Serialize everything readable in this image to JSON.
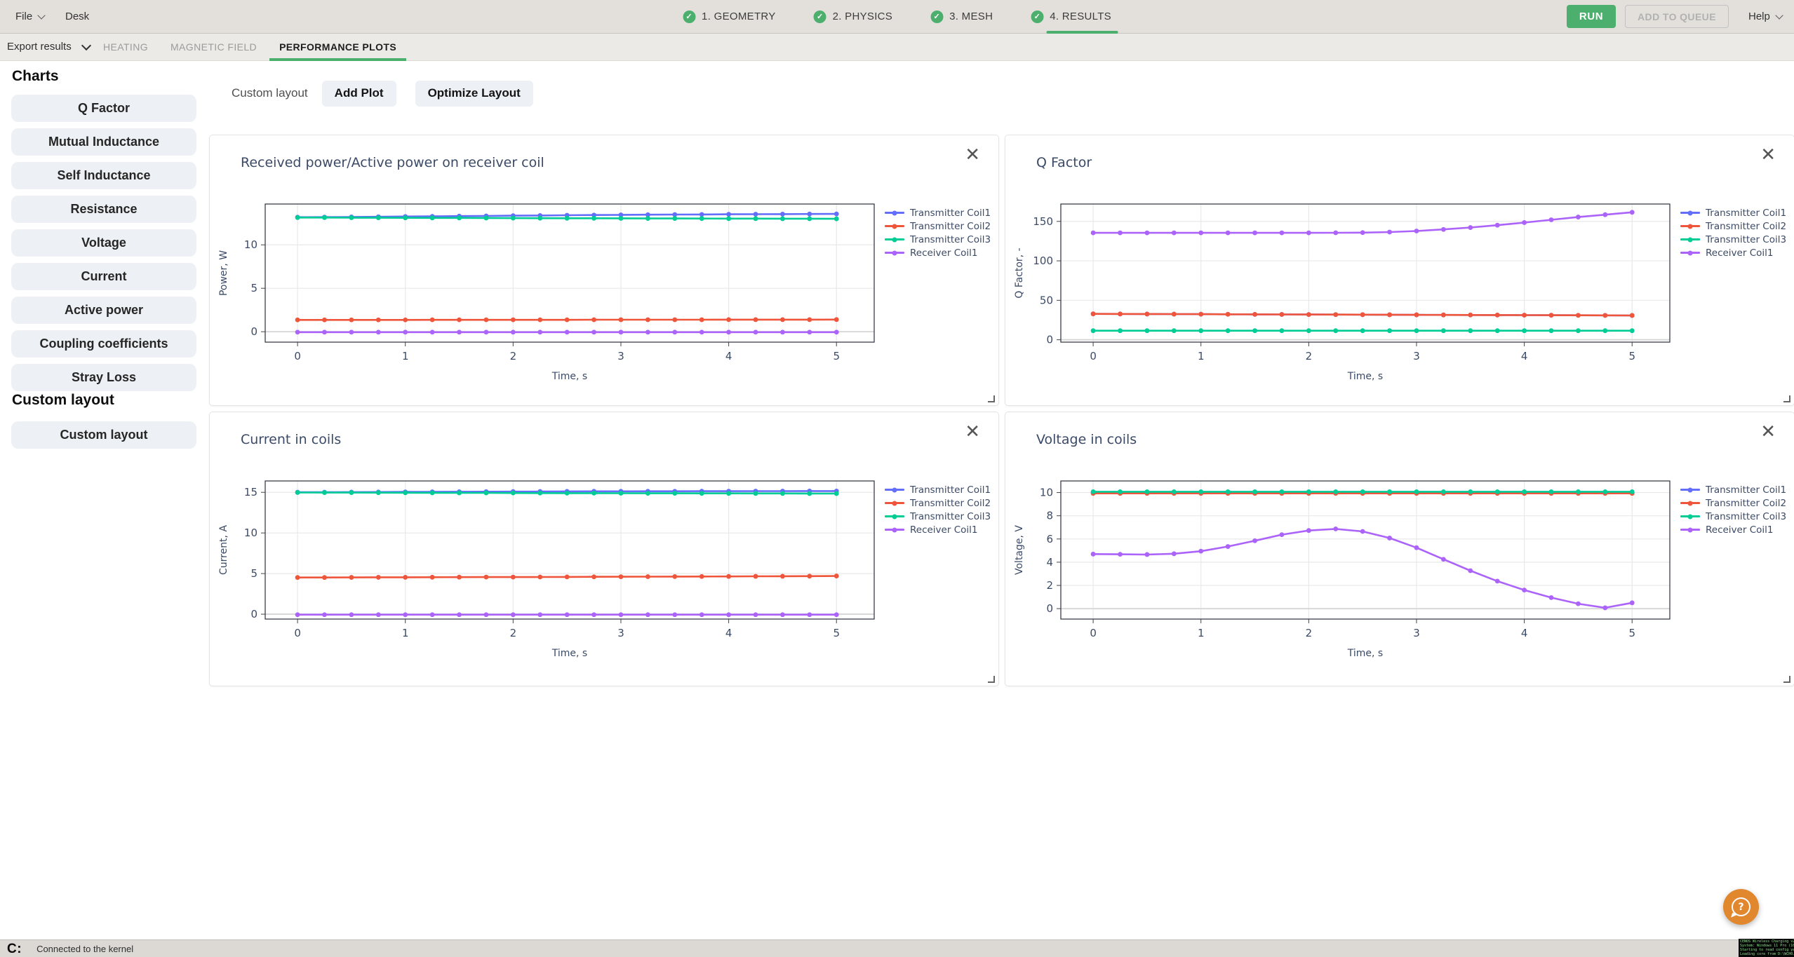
{
  "icons": {
    "check": "✓",
    "close": "✕",
    "help": "?"
  },
  "topbar": {
    "file_label": "File",
    "desk_label": "Desk",
    "steps": [
      {
        "label": "1. GEOMETRY",
        "done": true,
        "active": false
      },
      {
        "label": "2. PHYSICS",
        "done": true,
        "active": false
      },
      {
        "label": "3. MESH",
        "done": true,
        "active": false
      },
      {
        "label": "4. RESULTS",
        "done": true,
        "active": true
      }
    ],
    "run_label": "RUN",
    "add_to_queue_label": "ADD TO QUEUE",
    "help_label": "Help",
    "accent_green": "#4caf6e"
  },
  "tabbar": {
    "export_label": "Export results",
    "tabs": [
      {
        "label": "HEATING",
        "active": false
      },
      {
        "label": "MAGNETIC FIELD",
        "active": false
      },
      {
        "label": "PERFORMANCE PLOTS",
        "active": true
      }
    ]
  },
  "sidebar": {
    "charts_heading": "Charts",
    "chart_buttons": [
      "Q Factor",
      "Mutual Inductance",
      "Self Inductance",
      "Resistance",
      "Voltage",
      "Current",
      "Active power",
      "Coupling coefficients",
      "Stray Loss"
    ],
    "custom_heading": "Custom layout",
    "custom_buttons": [
      "Custom layout"
    ]
  },
  "toolbar": {
    "layout_label": "Custom layout",
    "add_plot_label": "Add Plot",
    "optimize_label": "Optimize Layout"
  },
  "statusbar": {
    "logo": "C:",
    "status": "Connected to the kernel"
  },
  "console_overlay": {
    "lines": [
      "CENOS Wireless Charging v2.6.",
      "System: Windows 11 Pro (10.0.",
      "Starting to read config yaml",
      "Loading core from D:\\WCH0.d"
    ]
  },
  "chart_data": [
    {
      "type": "line",
      "title": "Received power/Active power on receiver coil",
      "xlabel": "Time, s",
      "ylabel": "Power, W",
      "xlim": [
        -0.3,
        5.35
      ],
      "ylim": [
        -1.2,
        14.7
      ],
      "xticks": [
        0,
        1,
        2,
        3,
        4,
        5
      ],
      "yticks": [
        0,
        5,
        10
      ],
      "x": [
        0,
        0.25,
        0.5,
        0.75,
        1,
        1.25,
        1.5,
        1.75,
        2,
        2.25,
        2.5,
        2.75,
        3,
        3.25,
        3.5,
        3.75,
        4,
        4.25,
        4.5,
        4.75,
        5
      ],
      "series": [
        {
          "name": "Transmitter Coil1",
          "color": "#636efa",
          "values": [
            13.18,
            13.19,
            13.21,
            13.23,
            13.26,
            13.28,
            13.31,
            13.33,
            13.36,
            13.38,
            13.41,
            13.43,
            13.45,
            13.47,
            13.49,
            13.5,
            13.52,
            13.53,
            13.54,
            13.55,
            13.56
          ]
        },
        {
          "name": "Transmitter Coil2",
          "color": "#ef553b",
          "values": [
            1.36,
            1.36,
            1.36,
            1.36,
            1.36,
            1.37,
            1.37,
            1.37,
            1.37,
            1.37,
            1.37,
            1.38,
            1.38,
            1.38,
            1.38,
            1.38,
            1.39,
            1.39,
            1.39,
            1.39,
            1.4
          ]
        },
        {
          "name": "Transmitter Coil3",
          "color": "#00cc96",
          "values": [
            13.14,
            13.14,
            13.13,
            13.12,
            13.11,
            13.1,
            13.1,
            13.09,
            13.08,
            13.07,
            13.06,
            13.06,
            13.05,
            13.04,
            13.04,
            13.03,
            13.02,
            13.02,
            13.01,
            13.01,
            13.0
          ]
        },
        {
          "name": "Receiver Coil1",
          "color": "#ab63fa",
          "values": [
            -0.05,
            -0.05,
            -0.05,
            -0.05,
            -0.05,
            -0.05,
            -0.05,
            -0.05,
            -0.05,
            -0.05,
            -0.05,
            -0.05,
            -0.05,
            -0.05,
            -0.05,
            -0.05,
            -0.05,
            -0.05,
            -0.05,
            -0.05,
            -0.05
          ]
        }
      ]
    },
    {
      "type": "line",
      "title": "Q Factor",
      "xlabel": "Time, s",
      "ylabel": "Q Factor, -",
      "xlim": [
        -0.3,
        5.35
      ],
      "ylim": [
        -3,
        172
      ],
      "xticks": [
        0,
        1,
        2,
        3,
        4,
        5
      ],
      "yticks": [
        0,
        50,
        100,
        150
      ],
      "x": [
        0,
        0.25,
        0.5,
        0.75,
        1,
        1.25,
        1.5,
        1.75,
        2,
        2.25,
        2.5,
        2.75,
        3,
        3.25,
        3.5,
        3.75,
        4,
        4.25,
        4.5,
        4.75,
        5
      ],
      "series": [
        {
          "name": "Transmitter Coil1",
          "color": "#636efa",
          "values": [
            32.8,
            32.7,
            32.6,
            32.5,
            32.4,
            32.3,
            32.2,
            32.1,
            32.0,
            31.9,
            31.8,
            31.7,
            31.6,
            31.5,
            31.4,
            31.3,
            31.2,
            31.1,
            31.0,
            30.9,
            30.8
          ]
        },
        {
          "name": "Transmitter Coil2",
          "color": "#ef553b",
          "values": [
            32.8,
            32.7,
            32.6,
            32.5,
            32.4,
            32.3,
            32.2,
            32.1,
            32.0,
            31.9,
            31.8,
            31.7,
            31.6,
            31.5,
            31.4,
            31.3,
            31.2,
            31.1,
            31.0,
            30.9,
            30.8
          ]
        },
        {
          "name": "Transmitter Coil3",
          "color": "#00cc96",
          "values": [
            11.5,
            11.5,
            11.5,
            11.5,
            11.5,
            11.5,
            11.5,
            11.5,
            11.5,
            11.5,
            11.5,
            11.5,
            11.5,
            11.5,
            11.5,
            11.5,
            11.5,
            11.5,
            11.5,
            11.5,
            11.5
          ]
        },
        {
          "name": "Receiver Coil1",
          "color": "#ab63fa",
          "values": [
            135.5,
            135.5,
            135.5,
            135.5,
            135.5,
            135.5,
            135.5,
            135.5,
            135.5,
            135.6,
            135.8,
            136.5,
            137.8,
            139.8,
            142.2,
            145.2,
            148.5,
            152,
            155.5,
            158.5,
            161.5
          ]
        }
      ]
    },
    {
      "type": "line",
      "title": "Current in coils",
      "xlabel": "Time, s",
      "ylabel": "Current, A",
      "xlim": [
        -0.3,
        5.35
      ],
      "ylim": [
        -0.6,
        16.4
      ],
      "xticks": [
        0,
        1,
        2,
        3,
        4,
        5
      ],
      "yticks": [
        0,
        5,
        10,
        15
      ],
      "x": [
        0,
        0.25,
        0.5,
        0.75,
        1,
        1.25,
        1.5,
        1.75,
        2,
        2.25,
        2.5,
        2.75,
        3,
        3.25,
        3.5,
        3.75,
        4,
        4.25,
        4.5,
        4.75,
        5
      ],
      "series": [
        {
          "name": "Transmitter Coil1",
          "color": "#636efa",
          "values": [
            15.02,
            15.02,
            15.03,
            15.04,
            15.05,
            15.06,
            15.07,
            15.08,
            15.09,
            15.1,
            15.11,
            15.12,
            15.12,
            15.13,
            15.13,
            15.14,
            15.14,
            15.15,
            15.15,
            15.16,
            15.16
          ]
        },
        {
          "name": "Transmitter Coil2",
          "color": "#ef553b",
          "values": [
            4.52,
            4.52,
            4.53,
            4.54,
            4.54,
            4.55,
            4.56,
            4.57,
            4.57,
            4.58,
            4.59,
            4.6,
            4.61,
            4.62,
            4.63,
            4.64,
            4.65,
            4.66,
            4.67,
            4.68,
            4.7
          ]
        },
        {
          "name": "Transmitter Coil3",
          "color": "#00cc96",
          "values": [
            14.98,
            14.97,
            14.97,
            14.96,
            14.95,
            14.94,
            14.93,
            14.93,
            14.92,
            14.91,
            14.9,
            14.9,
            14.89,
            14.88,
            14.88,
            14.87,
            14.87,
            14.86,
            14.86,
            14.85,
            14.85
          ]
        },
        {
          "name": "Receiver Coil1",
          "color": "#ab63fa",
          "values": [
            -0.06,
            -0.06,
            -0.06,
            -0.06,
            -0.06,
            -0.06,
            -0.06,
            -0.06,
            -0.06,
            -0.06,
            -0.06,
            -0.06,
            -0.06,
            -0.06,
            -0.06,
            -0.06,
            -0.06,
            -0.06,
            -0.06,
            -0.06,
            -0.06
          ]
        }
      ]
    },
    {
      "type": "line",
      "title": "Voltage in coils",
      "xlabel": "Time, s",
      "ylabel": "Voltage, V",
      "xlim": [
        -0.3,
        5.35
      ],
      "ylim": [
        -0.9,
        11
      ],
      "xticks": [
        0,
        1,
        2,
        3,
        4,
        5
      ],
      "yticks": [
        0,
        2,
        4,
        6,
        8,
        10
      ],
      "x": [
        0,
        0.25,
        0.5,
        0.75,
        1,
        1.25,
        1.5,
        1.75,
        2,
        2.25,
        2.5,
        2.75,
        3,
        3.25,
        3.5,
        3.75,
        4,
        4.25,
        4.5,
        4.75,
        5
      ],
      "series": [
        {
          "name": "Transmitter Coil1",
          "color": "#636efa",
          "values": [
            10,
            10,
            10,
            10,
            10,
            10,
            10,
            10,
            10,
            10,
            10,
            10,
            10,
            10,
            10,
            10,
            10,
            10,
            10,
            10,
            10
          ]
        },
        {
          "name": "Transmitter Coil2",
          "color": "#ef553b",
          "values": [
            9.93,
            9.93,
            9.93,
            9.93,
            9.93,
            9.93,
            9.93,
            9.93,
            9.93,
            9.93,
            9.93,
            9.93,
            9.93,
            9.93,
            9.93,
            9.93,
            9.93,
            9.93,
            9.93,
            9.93,
            9.93
          ]
        },
        {
          "name": "Transmitter Coil3",
          "color": "#00cc96",
          "values": [
            10.07,
            10.07,
            10.07,
            10.07,
            10.07,
            10.07,
            10.07,
            10.07,
            10.07,
            10.07,
            10.07,
            10.07,
            10.07,
            10.07,
            10.07,
            10.07,
            10.07,
            10.07,
            10.07,
            10.07,
            10.07
          ]
        },
        {
          "name": "Receiver Coil1",
          "color": "#ab63fa",
          "values": [
            4.7,
            4.68,
            4.66,
            4.73,
            4.95,
            5.35,
            5.85,
            6.37,
            6.73,
            6.87,
            6.65,
            6.08,
            5.25,
            4.25,
            3.27,
            2.37,
            1.6,
            0.95,
            0.42,
            0.07,
            0.5
          ]
        }
      ]
    }
  ]
}
